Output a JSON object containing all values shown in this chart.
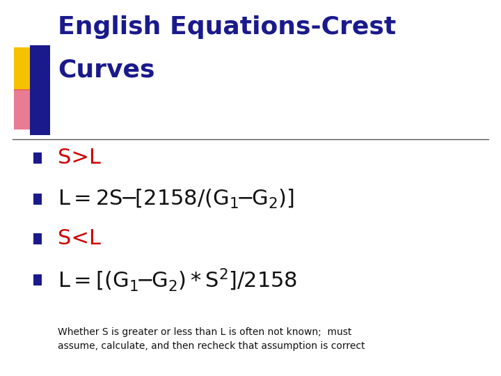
{
  "title_line1": "English Equations-Crest",
  "title_line2": "Curves",
  "title_color": "#1a1a8c",
  "background_color": "#ffffff",
  "bullet_color": "#1a1a8c",
  "red_color": "#cc0000",
  "black_color": "#111111",
  "footer_color": "#111111",
  "footer_text": "Whether S is greater or less than L is often not known;  must\nassume, calculate, and then recheck that assumption is correct",
  "title_fontsize": 26,
  "bullet_fontsize": 22,
  "footer_fontsize": 10,
  "fig_width": 7.2,
  "fig_height": 5.4,
  "dpi": 100
}
